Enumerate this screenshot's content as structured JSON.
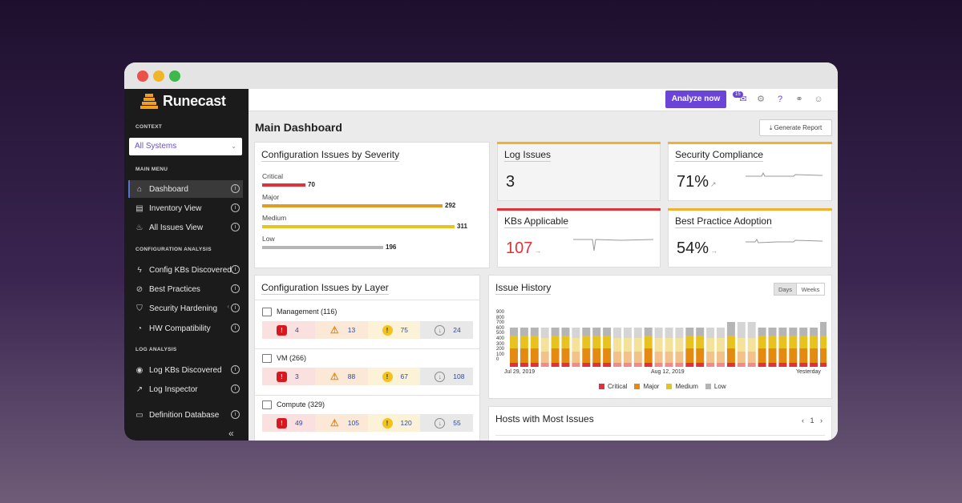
{
  "brand": {
    "name": "Runecast"
  },
  "sidebar": {
    "context_label": "CONTEXT",
    "context_value": "All Systems",
    "main_menu_label": "MAIN MENU",
    "main_menu": [
      {
        "label": "Dashboard",
        "icon": "home-icon"
      },
      {
        "label": "Inventory View",
        "icon": "inventory-icon"
      },
      {
        "label": "All Issues View",
        "icon": "flame-icon"
      }
    ],
    "config_label": "CONFIGURATION ANALYSIS",
    "config_menu": [
      {
        "label": "Config KBs Discovered",
        "icon": "lightning-icon"
      },
      {
        "label": "Best Practices",
        "icon": "compass-icon"
      },
      {
        "label": "Security Hardening",
        "icon": "shield-icon"
      },
      {
        "label": "HW Compatibility",
        "icon": "gauge-icon"
      }
    ],
    "log_label": "LOG ANALYSIS",
    "log_menu": [
      {
        "label": "Log KBs Discovered",
        "icon": "eye-icon"
      },
      {
        "label": "Log Inspector",
        "icon": "trend-icon"
      }
    ],
    "extra_menu": [
      {
        "label": "Definition Database",
        "icon": "inbox-icon"
      }
    ],
    "collapse_label": "«"
  },
  "topbar": {
    "analyze_label": "Analyze now",
    "notification_count": "15"
  },
  "page": {
    "title": "Main Dashboard",
    "generate_report_label": "Generate Report"
  },
  "severity_card": {
    "title": "Configuration Issues by Severity",
    "rows": [
      {
        "label": "Critical",
        "value": 70,
        "color": "#e0323a"
      },
      {
        "label": "Major",
        "value": 292,
        "color": "#e59a22"
      },
      {
        "label": "Medium",
        "value": 311,
        "color": "#e8c21e"
      },
      {
        "label": "Low",
        "value": 196,
        "color": "#b5b5b5"
      }
    ]
  },
  "stats": {
    "log_issues": {
      "title": "Log Issues",
      "value": "3",
      "accent": "#f0b030"
    },
    "security_compliance": {
      "title": "Security Compliance",
      "value": "71%",
      "accent": "#f0b030"
    },
    "kbs_applicable": {
      "title": "KBs Applicable",
      "value": "107",
      "accent": "#e0323a",
      "value_color": "#e0323a"
    },
    "best_practice": {
      "title": "Best Practice Adoption",
      "value": "54%",
      "accent": "#f0b030"
    }
  },
  "layer_card": {
    "title": "Configuration Issues by Layer",
    "layers": [
      {
        "name": "Management (116)",
        "icon": "management-icon",
        "critical": "4",
        "major": "13",
        "medium": "75",
        "low": "24"
      },
      {
        "name": "VM (266)",
        "icon": "monitor-icon",
        "critical": "3",
        "major": "88",
        "medium": "67",
        "low": "108"
      },
      {
        "name": "Compute (329)",
        "icon": "server-icon",
        "critical": "49",
        "major": "105",
        "medium": "120",
        "low": "55"
      }
    ]
  },
  "issue_history": {
    "title": "Issue History",
    "toggle_days": "Days",
    "toggle_weeks": "Weeks",
    "y_ticks": [
      "900",
      "800",
      "700",
      "600",
      "500",
      "400",
      "300",
      "200",
      "100",
      "0"
    ],
    "x_labels": [
      "Jul 29, 2019",
      "Aug 12, 2019",
      "Yesterday"
    ],
    "legend": [
      {
        "label": "Critical",
        "color": "#e0323a"
      },
      {
        "label": "Major",
        "color": "#e58a10"
      },
      {
        "label": "Medium",
        "color": "#e8c21e"
      },
      {
        "label": "Low",
        "color": "#b5b5b5"
      }
    ]
  },
  "hosts_card": {
    "title": "Hosts with Most Issues",
    "page": "1"
  }
}
